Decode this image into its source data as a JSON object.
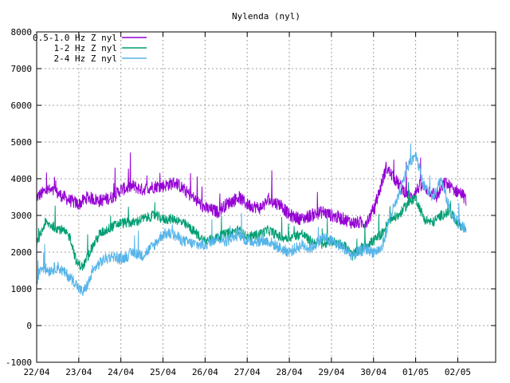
{
  "chart_data": {
    "type": "line",
    "title": "Nylenda (nyl)",
    "xlabel": "",
    "ylabel": "",
    "x_ticks": [
      "22/04",
      "23/04",
      "24/04",
      "25/04",
      "26/04",
      "27/04",
      "28/04",
      "29/04",
      "30/04",
      "01/05",
      "02/05"
    ],
    "xlim": [
      0,
      10.9
    ],
    "ylim": [
      -1000,
      8000
    ],
    "y_ticks": [
      -1000,
      0,
      1000,
      2000,
      3000,
      4000,
      5000,
      6000,
      7000,
      8000
    ],
    "grid": true,
    "legend_position": "top-left",
    "series": [
      {
        "name": "0.5-1.0 Hz Z nyl",
        "color": "#9400d3",
        "noise": 180,
        "x": [
          0,
          0.25,
          0.5,
          0.8,
          1.0,
          1.2,
          1.5,
          1.8,
          2.0,
          2.3,
          2.5,
          2.8,
          3.0,
          3.3,
          3.5,
          3.8,
          4.0,
          4.3,
          4.5,
          4.8,
          5.0,
          5.3,
          5.5,
          5.8,
          6.0,
          6.3,
          6.5,
          6.8,
          7.0,
          7.3,
          7.5,
          7.8,
          8.0,
          8.15,
          8.3,
          8.5,
          8.7,
          8.9,
          9.1,
          9.3,
          9.5,
          9.7,
          9.9,
          10.1,
          10.2
        ],
        "y": [
          3500,
          3700,
          3600,
          3400,
          3300,
          3500,
          3400,
          3500,
          3700,
          3800,
          3700,
          3800,
          3800,
          3900,
          3700,
          3400,
          3200,
          3100,
          3300,
          3500,
          3300,
          3200,
          3400,
          3300,
          3000,
          2900,
          3000,
          3100,
          3000,
          2900,
          2800,
          2800,
          3100,
          3700,
          4300,
          4000,
          3700,
          3500,
          3800,
          3700,
          3500,
          3900,
          3700,
          3600,
          3400
        ]
      },
      {
        "name": "1-2 Hz Z nyl",
        "color": "#009e73",
        "noise": 140,
        "x": [
          0,
          0.2,
          0.4,
          0.6,
          0.8,
          0.95,
          1.1,
          1.3,
          1.5,
          1.8,
          2.0,
          2.3,
          2.5,
          2.8,
          3.0,
          3.3,
          3.6,
          3.8,
          4.0,
          4.3,
          4.5,
          4.8,
          5.0,
          5.3,
          5.5,
          5.8,
          6.0,
          6.3,
          6.5,
          6.8,
          7.0,
          7.3,
          7.5,
          7.8,
          8.0,
          8.2,
          8.4,
          8.6,
          8.8,
          9.0,
          9.2,
          9.4,
          9.6,
          9.8,
          10.0,
          10.2
        ],
        "y": [
          2200,
          2800,
          2700,
          2600,
          2400,
          1700,
          1600,
          2100,
          2500,
          2700,
          2800,
          2800,
          2900,
          3000,
          2900,
          2900,
          2700,
          2500,
          2300,
          2400,
          2500,
          2600,
          2400,
          2500,
          2600,
          2400,
          2400,
          2500,
          2300,
          2200,
          2300,
          2200,
          1900,
          2200,
          2300,
          2500,
          2900,
          3000,
          3300,
          3500,
          2900,
          2800,
          3000,
          3100,
          2800,
          2600
        ]
      },
      {
        "name": "2-4 Hz Z nyl",
        "color": "#56b4e9",
        "noise": 160,
        "x": [
          0,
          0.1,
          0.3,
          0.5,
          0.7,
          0.9,
          1.0,
          1.1,
          1.2,
          1.4,
          1.6,
          1.8,
          2.0,
          2.3,
          2.5,
          2.8,
          3.0,
          3.2,
          3.5,
          3.8,
          4.0,
          4.3,
          4.5,
          4.8,
          5.0,
          5.3,
          5.5,
          5.8,
          6.0,
          6.3,
          6.5,
          6.8,
          7.0,
          7.3,
          7.5,
          7.8,
          8.0,
          8.2,
          8.4,
          8.6,
          8.8,
          9.0,
          9.2,
          9.4,
          9.6,
          9.8,
          10.0,
          10.2
        ],
        "y": [
          1200,
          1600,
          1500,
          1600,
          1400,
          1200,
          1000,
          900,
          1100,
          1600,
          1800,
          1900,
          1800,
          2000,
          1900,
          2200,
          2500,
          2500,
          2300,
          2200,
          2200,
          2400,
          2300,
          2500,
          2300,
          2300,
          2300,
          2100,
          2000,
          2200,
          2100,
          2400,
          2300,
          2100,
          1900,
          2100,
          2000,
          2100,
          3000,
          3500,
          4300,
          4700,
          3800,
          3500,
          4000,
          3200,
          2800,
          2600
        ]
      }
    ]
  }
}
